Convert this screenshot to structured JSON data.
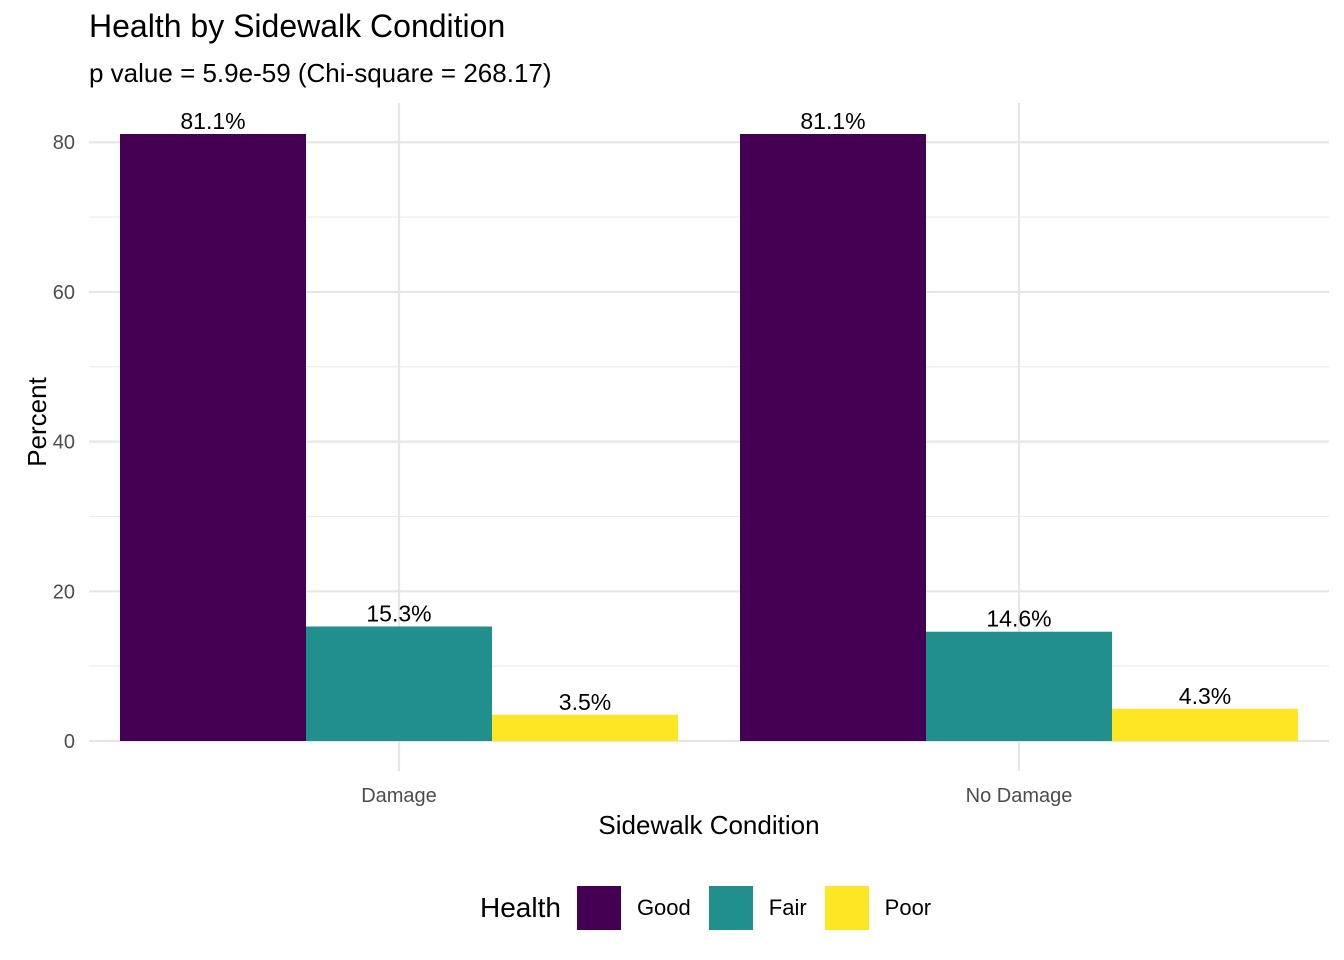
{
  "chart_data": {
    "type": "bar",
    "title": "Health by Sidewalk Condition",
    "subtitle": "p value = 5.9e-59 (Chi-square = 268.17)",
    "xlabel": "Sidewalk Condition",
    "ylabel": "Percent",
    "categories": [
      "Damage",
      "No Damage"
    ],
    "series": [
      {
        "name": "Good",
        "color": "#440154",
        "values": [
          81.1,
          81.1
        ],
        "labels": [
          "81.1%",
          "81.1%"
        ]
      },
      {
        "name": "Fair",
        "color": "#21908C",
        "values": [
          15.3,
          14.6
        ],
        "labels": [
          "15.3%",
          "14.6%"
        ]
      },
      {
        "name": "Poor",
        "color": "#FDE725",
        "values": [
          3.5,
          4.3
        ],
        "labels": [
          "3.5%",
          "4.3%"
        ]
      }
    ],
    "yticks": [
      0,
      20,
      40,
      60,
      80
    ],
    "ylim": [
      0,
      81.1
    ],
    "grid": true,
    "legend": {
      "title": "Health",
      "position": "bottom"
    }
  }
}
